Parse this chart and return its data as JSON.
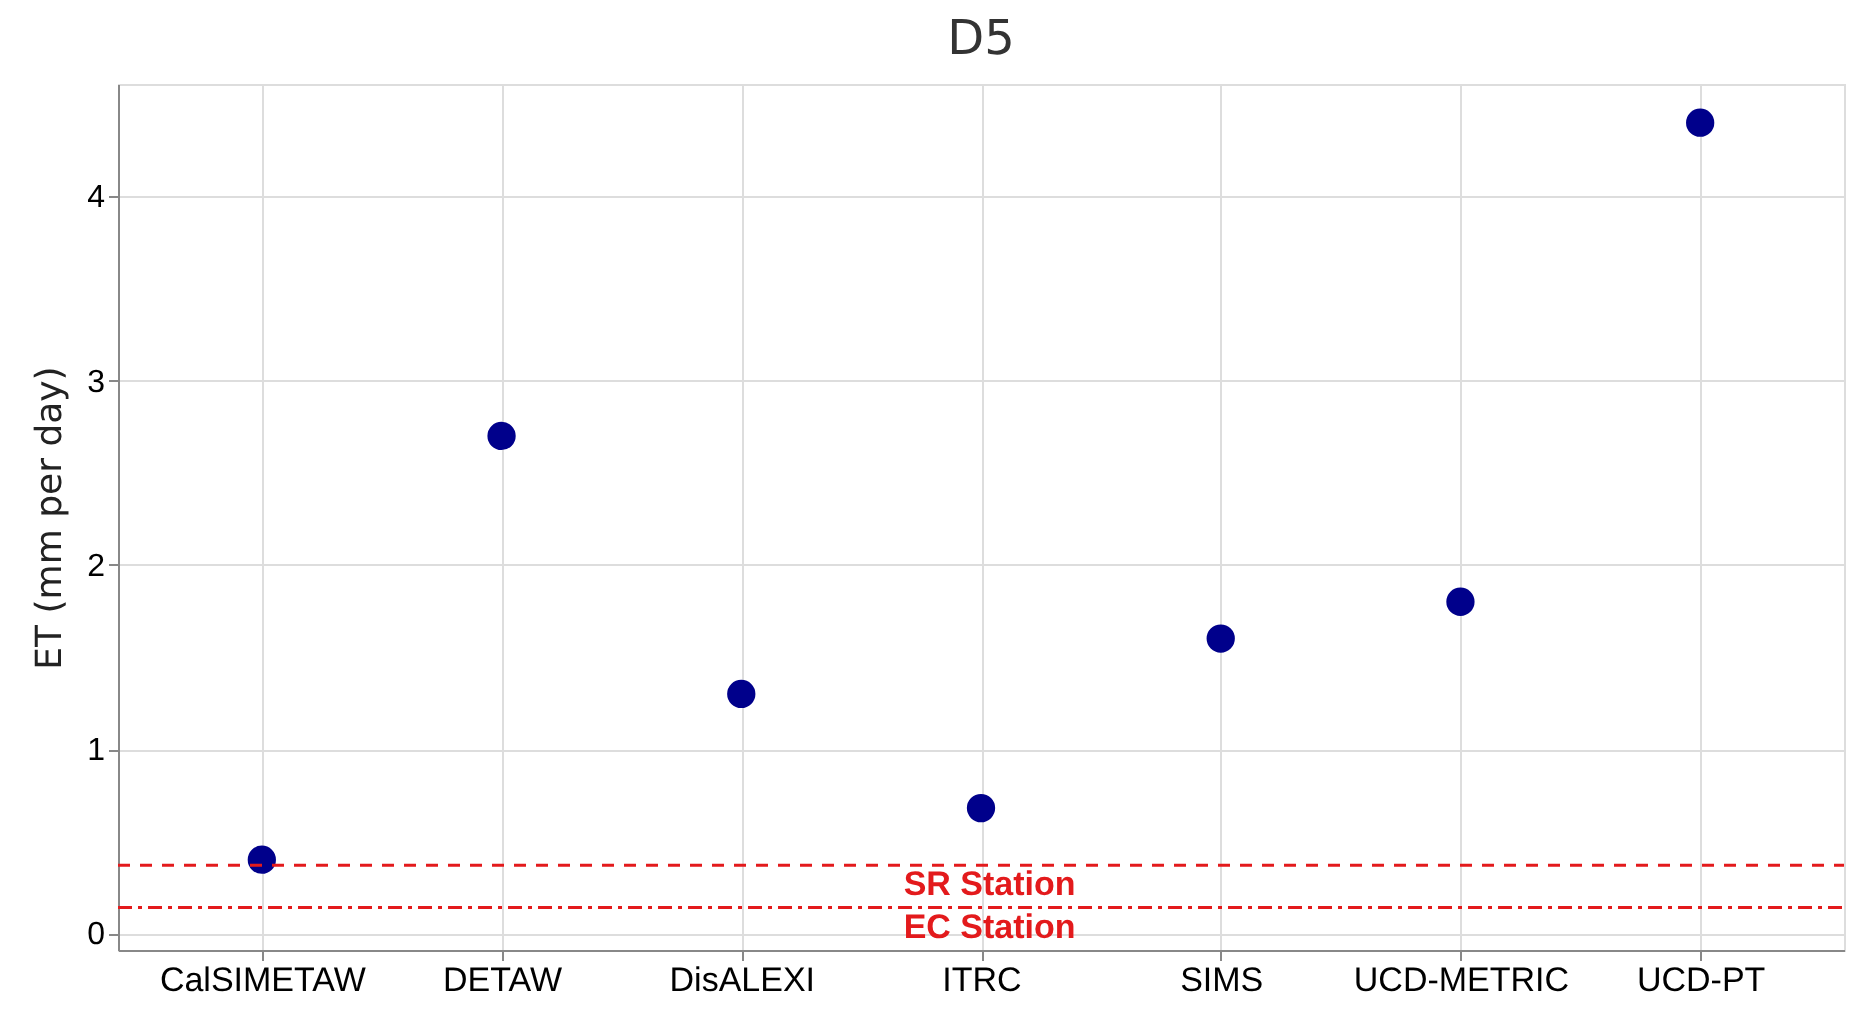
{
  "chart_data": {
    "type": "scatter",
    "title": "D5",
    "ylabel": "ET (mm per day)",
    "categories": [
      "CalSIMETAW",
      "DETAW",
      "DisALEXI",
      "ITRC",
      "SIMS",
      "UCD-METRIC",
      "UCD-PT"
    ],
    "series": [
      {
        "color": "#00008b",
        "values": [
          0.4,
          2.7,
          1.3,
          0.68,
          1.6,
          1.8,
          4.4
        ]
      }
    ],
    "ylim": [
      -0.09,
      4.61
    ],
    "yticks": [
      0,
      1,
      2,
      3,
      4
    ],
    "grid": true,
    "marker": "circle",
    "ref_lines": [
      {
        "axis": "y",
        "value": 0.37,
        "label": "SR Station",
        "color": "#e31a1c",
        "line_style": "dashed"
      },
      {
        "axis": "y",
        "value": 0.14,
        "label": "EC Station",
        "color": "#e31a1c",
        "line_style": "dashdot"
      }
    ]
  }
}
